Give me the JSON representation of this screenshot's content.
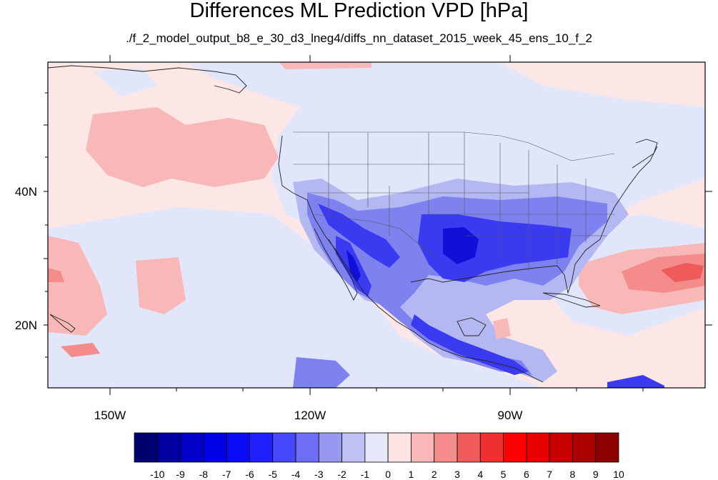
{
  "title": "Differences ML Prediction VPD [hPa]",
  "subtitle": "./f_2_model_output_b8_e_30_d3_lneg4/diffs_nn_dataset_2015_week_45_ens_10_f_2",
  "axes": {
    "lon_labels": [
      "150W",
      "120W",
      "90W"
    ],
    "lat_labels": [
      "40N",
      "20N"
    ]
  },
  "colorbar": {
    "labels": [
      "-10",
      "-9",
      "-8",
      "-7",
      "-6",
      "-5",
      "-4",
      "-3",
      "-2",
      "-1",
      "0",
      "1",
      "2",
      "3",
      "4",
      "5",
      "6",
      "7",
      "8",
      "9",
      "10"
    ],
    "colors": [
      "#00006e",
      "#0000a0",
      "#0000c8",
      "#0000e6",
      "#0a0af5",
      "#2020ff",
      "#4848ff",
      "#6e6ef5",
      "#9898f0",
      "#c0c0f5",
      "#e6e8fa",
      "#fce4e4",
      "#f8b8b8",
      "#f48c8c",
      "#f05a5a",
      "#f03030",
      "#ff0000",
      "#e60000",
      "#c80000",
      "#aa0000",
      "#8c0000"
    ]
  },
  "map_colors": {
    "ocean_neutral": "#fce6e6",
    "light_blue": "#e2e6fa",
    "mid_blue": "#b4b8f2",
    "blue": "#7e82ee",
    "deep_blue": "#3a3af0",
    "darkest_blue": "#1010d8",
    "light_red": "#f8b8b8",
    "mid_red": "#f48c8c",
    "red": "#f05a5a"
  }
}
